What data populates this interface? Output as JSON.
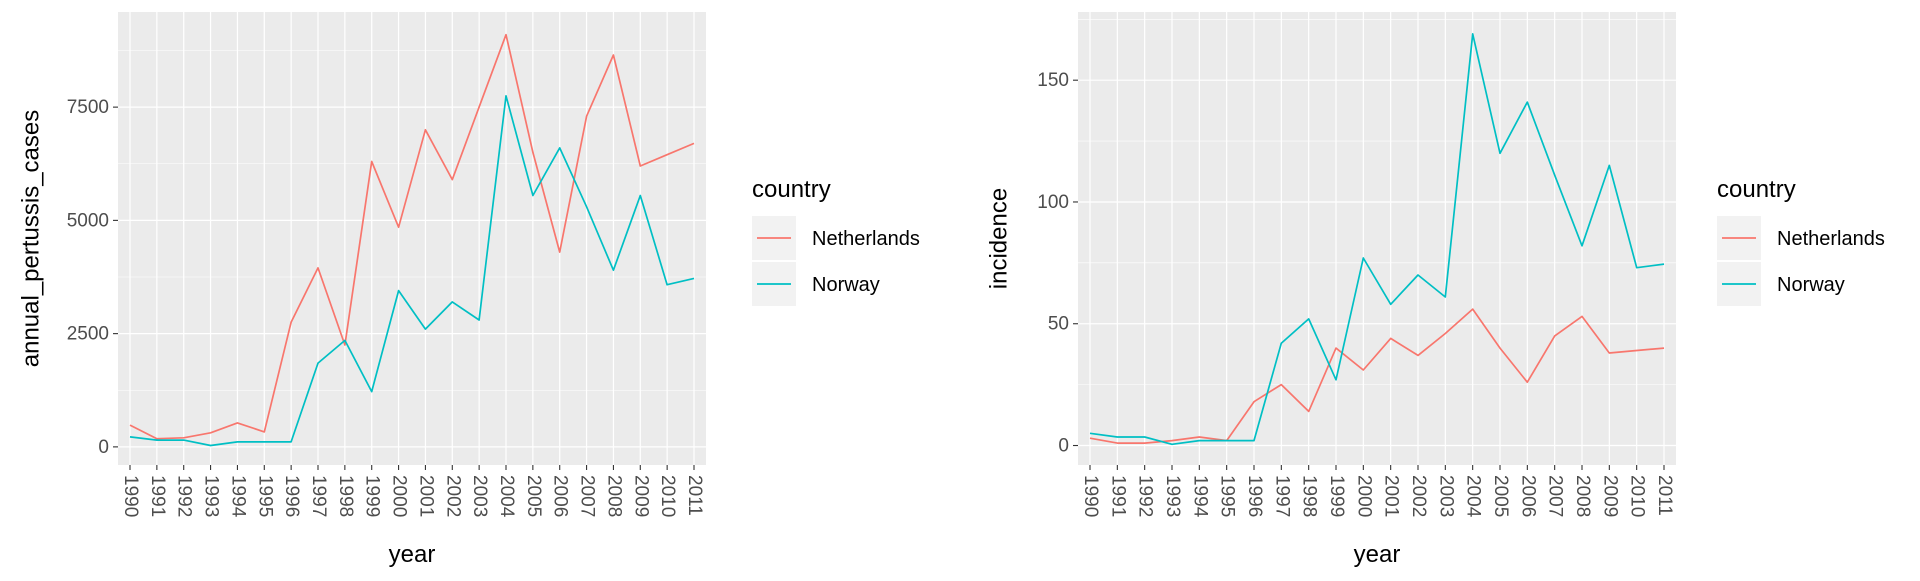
{
  "colors": {
    "panel_bg": "#EBEBEB",
    "grid": "#FFFFFF",
    "netherlands": "#F8766D",
    "norway": "#00BFC4",
    "text": "#000000",
    "tick_text": "#4D4D4D"
  },
  "chart_data": [
    {
      "type": "line",
      "xlabel": "year",
      "ylabel": "annual_pertussis_cases",
      "x": [
        "1990",
        "1991",
        "1992",
        "1993",
        "1994",
        "1995",
        "1996",
        "1997",
        "1998",
        "1999",
        "2000",
        "2001",
        "2002",
        "2003",
        "2004",
        "2005",
        "2006",
        "2007",
        "2008",
        "2009",
        "2010",
        "2011"
      ],
      "y_ticks": [
        0,
        2500,
        5000,
        7500
      ],
      "y_tick_labels": [
        "0",
        "2500",
        "5000",
        "7500"
      ],
      "ylim": [
        -400,
        9600
      ],
      "legend_title": "country",
      "legend_position": "right",
      "series": [
        {
          "name": "Netherlands",
          "color": "#F8766D",
          "values": [
            480,
            180,
            200,
            310,
            530,
            330,
            2750,
            3950,
            2250,
            6300,
            4850,
            7000,
            5900,
            7500,
            9100,
            6500,
            4300,
            7300,
            8650,
            6200,
            6450,
            6700
          ]
        },
        {
          "name": "Norway",
          "color": "#00BFC4",
          "values": [
            220,
            150,
            150,
            30,
            110,
            110,
            110,
            1850,
            2350,
            1220,
            3450,
            2600,
            3200,
            2800,
            7750,
            5550,
            6600,
            5300,
            3900,
            5550,
            3580,
            3720
          ]
        }
      ]
    },
    {
      "type": "line",
      "xlabel": "year",
      "ylabel": "incidence",
      "x": [
        "1990",
        "1991",
        "1992",
        "1993",
        "1994",
        "1995",
        "1996",
        "1997",
        "1998",
        "1999",
        "2000",
        "2001",
        "2002",
        "2003",
        "2004",
        "2005",
        "2006",
        "2007",
        "2008",
        "2009",
        "2010",
        "2011"
      ],
      "y_ticks": [
        0,
        50,
        100,
        150
      ],
      "y_tick_labels": [
        "0",
        "50",
        "100",
        "150"
      ],
      "ylim": [
        -8,
        178
      ],
      "legend_title": "country",
      "legend_position": "right",
      "series": [
        {
          "name": "Netherlands",
          "color": "#F8766D",
          "values": [
            3,
            1,
            1,
            2,
            3.5,
            2,
            18,
            25,
            14,
            40,
            31,
            44,
            37,
            46,
            56,
            40,
            26,
            45,
            53,
            38,
            39,
            40
          ]
        },
        {
          "name": "Norway",
          "color": "#00BFC4",
          "values": [
            5,
            3.5,
            3.5,
            0.5,
            2,
            2,
            2,
            42,
            52,
            27,
            77,
            58,
            70,
            61,
            169,
            120,
            141,
            111,
            82,
            115,
            73,
            74.5
          ]
        }
      ]
    }
  ]
}
